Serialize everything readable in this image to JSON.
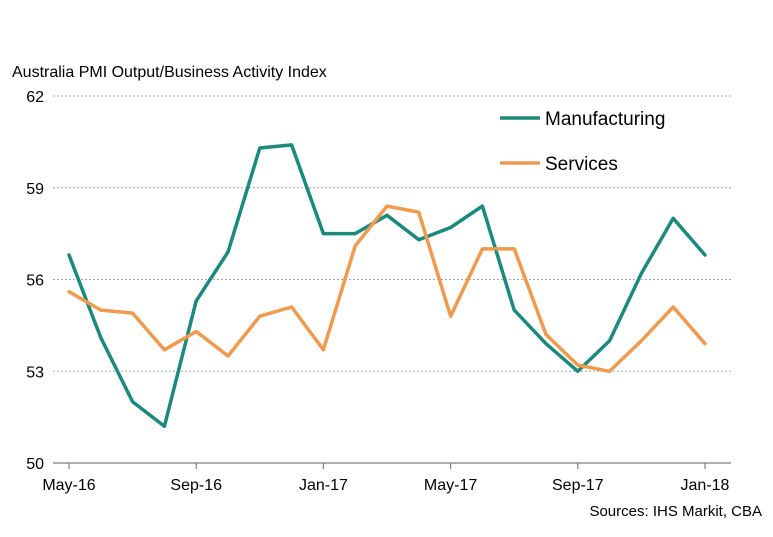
{
  "chart_data": {
    "type": "line",
    "title": "Australia PMI Output/Business  Activity Index",
    "source": "Sources: IHS Markit, CBA",
    "x": [
      "May-16",
      "Jun-16",
      "Jul-16",
      "Aug-16",
      "Sep-16",
      "Oct-16",
      "Nov-16",
      "Dec-16",
      "Jan-17",
      "Feb-17",
      "Mar-17",
      "Apr-17",
      "May-17",
      "Jun-17",
      "Jul-17",
      "Aug-17",
      "Sep-17",
      "Oct-17",
      "Nov-17",
      "Dec-17",
      "Jan-18"
    ],
    "xtick_labels": [
      "May-16",
      "Sep-16",
      "Jan-17",
      "May-17",
      "Sep-17",
      "Jan-18"
    ],
    "xtick_indices": [
      0,
      4,
      8,
      12,
      16,
      20
    ],
    "ylim": [
      50,
      62
    ],
    "yticks": [
      50,
      53,
      56,
      59,
      62
    ],
    "grid": true,
    "legend_position": "top-right",
    "series": [
      {
        "name": "Manufacturing",
        "color": "#1a8a7f",
        "values": [
          56.8,
          54.1,
          52.0,
          51.2,
          55.3,
          56.9,
          60.3,
          60.4,
          57.5,
          57.5,
          58.1,
          57.3,
          57.7,
          58.4,
          55.0,
          53.9,
          53.0,
          54.0,
          56.2,
          58.0,
          56.8
        ]
      },
      {
        "name": "Services",
        "color": "#f19a4c",
        "values": [
          55.6,
          55.0,
          54.9,
          53.7,
          54.3,
          53.5,
          54.8,
          55.1,
          53.7,
          57.1,
          58.4,
          58.2,
          54.8,
          57.0,
          57.0,
          54.2,
          53.2,
          53.0,
          54.0,
          55.1,
          53.9
        ]
      }
    ]
  }
}
